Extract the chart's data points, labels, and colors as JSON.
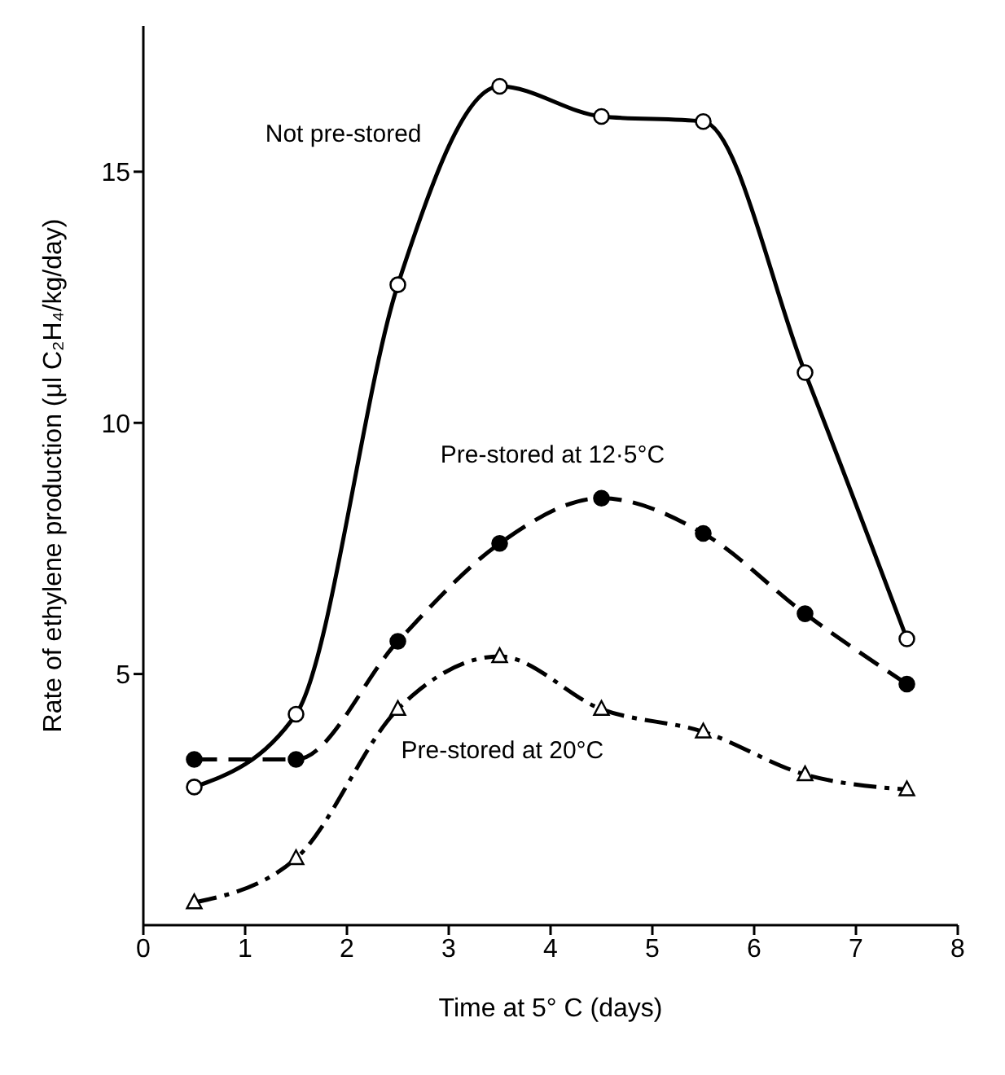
{
  "chart_data": {
    "type": "line",
    "xlabel": "Time at 5° C (days)",
    "ylabel": "Rate of ethylene production (μl C₂H₄/kg/day)",
    "x": [
      0.5,
      1.5,
      2.5,
      3.5,
      4.5,
      5.5,
      6.5,
      7.5
    ],
    "series": [
      {
        "name": "Not pre-stored",
        "color": "#000000",
        "marker": "circle",
        "line_style": "solid",
        "values": [
          2.75,
          4.2,
          12.75,
          16.7,
          16.1,
          16.0,
          11.0,
          5.7
        ]
      },
      {
        "name": "Pre-stored at 12·5°C",
        "color": "#000000",
        "marker": "circle",
        "line_style": "dashed",
        "values": [
          3.3,
          3.3,
          5.65,
          7.6,
          8.5,
          7.8,
          6.2,
          4.8
        ]
      },
      {
        "name": "Pre-stored at 20°C",
        "color": "#000000",
        "marker": "triangle",
        "line_style": "dashdot",
        "values": [
          0.45,
          1.33,
          4.3,
          5.35,
          4.3,
          3.85,
          3.0,
          2.7
        ]
      }
    ],
    "xlim": [
      0,
      8
    ],
    "xticks": [
      0,
      1,
      2,
      3,
      4,
      5,
      6,
      7,
      8
    ],
    "ylim": [
      0,
      17.9
    ],
    "yticks": [
      5,
      10,
      15
    ],
    "grid": false,
    "legend": false
  }
}
